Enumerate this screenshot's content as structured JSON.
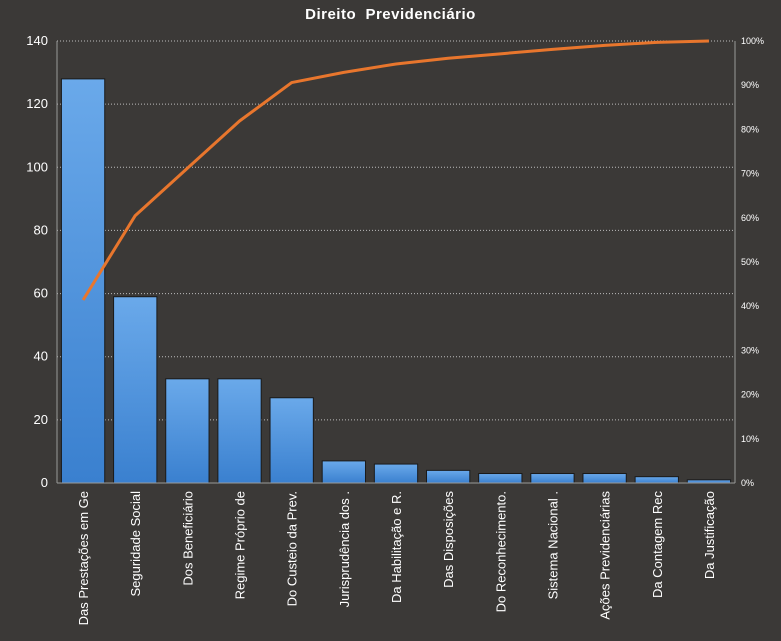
{
  "chart_data": {
    "type": "bar",
    "title": "Direito  Previdenciário",
    "categories": [
      "Das Prestações em Ge",
      "Seguridade Social",
      "Dos Beneficiário",
      "Regime Próprio  de",
      "Do Custeio da Prev.",
      "Jurisprudência dos .",
      "Da Habilitação e R.",
      "Das Disposições",
      "Do Reconhecimento.",
      "Sistema Nacional .",
      "Ações Previdenciárias",
      "Da Contagem Rec",
      "Da Justificação"
    ],
    "values": [
      128,
      59,
      33,
      33,
      27,
      7,
      6,
      4,
      3,
      3,
      3,
      2,
      1
    ],
    "cumulative_percent": [
      41.4,
      60.5,
      71.2,
      81.9,
      90.6,
      92.9,
      94.8,
      96.1,
      97.1,
      98.1,
      99.0,
      99.7,
      100
    ],
    "ylim": [
      0,
      140
    ],
    "yticks": [
      "0",
      "20",
      "40",
      "60",
      "80",
      "100",
      "120",
      "140"
    ],
    "y2lim": [
      0,
      100
    ],
    "y2ticks": [
      "0%",
      "10%",
      "20%",
      "30%",
      "40%",
      "50%",
      "60%",
      "70%",
      "80%",
      "90%",
      "100%"
    ],
    "grid": true,
    "colors": {
      "background": "#3b3937",
      "bar": "#4a90d9",
      "line": "#e8762d",
      "grid": "#bdbdbd"
    }
  }
}
